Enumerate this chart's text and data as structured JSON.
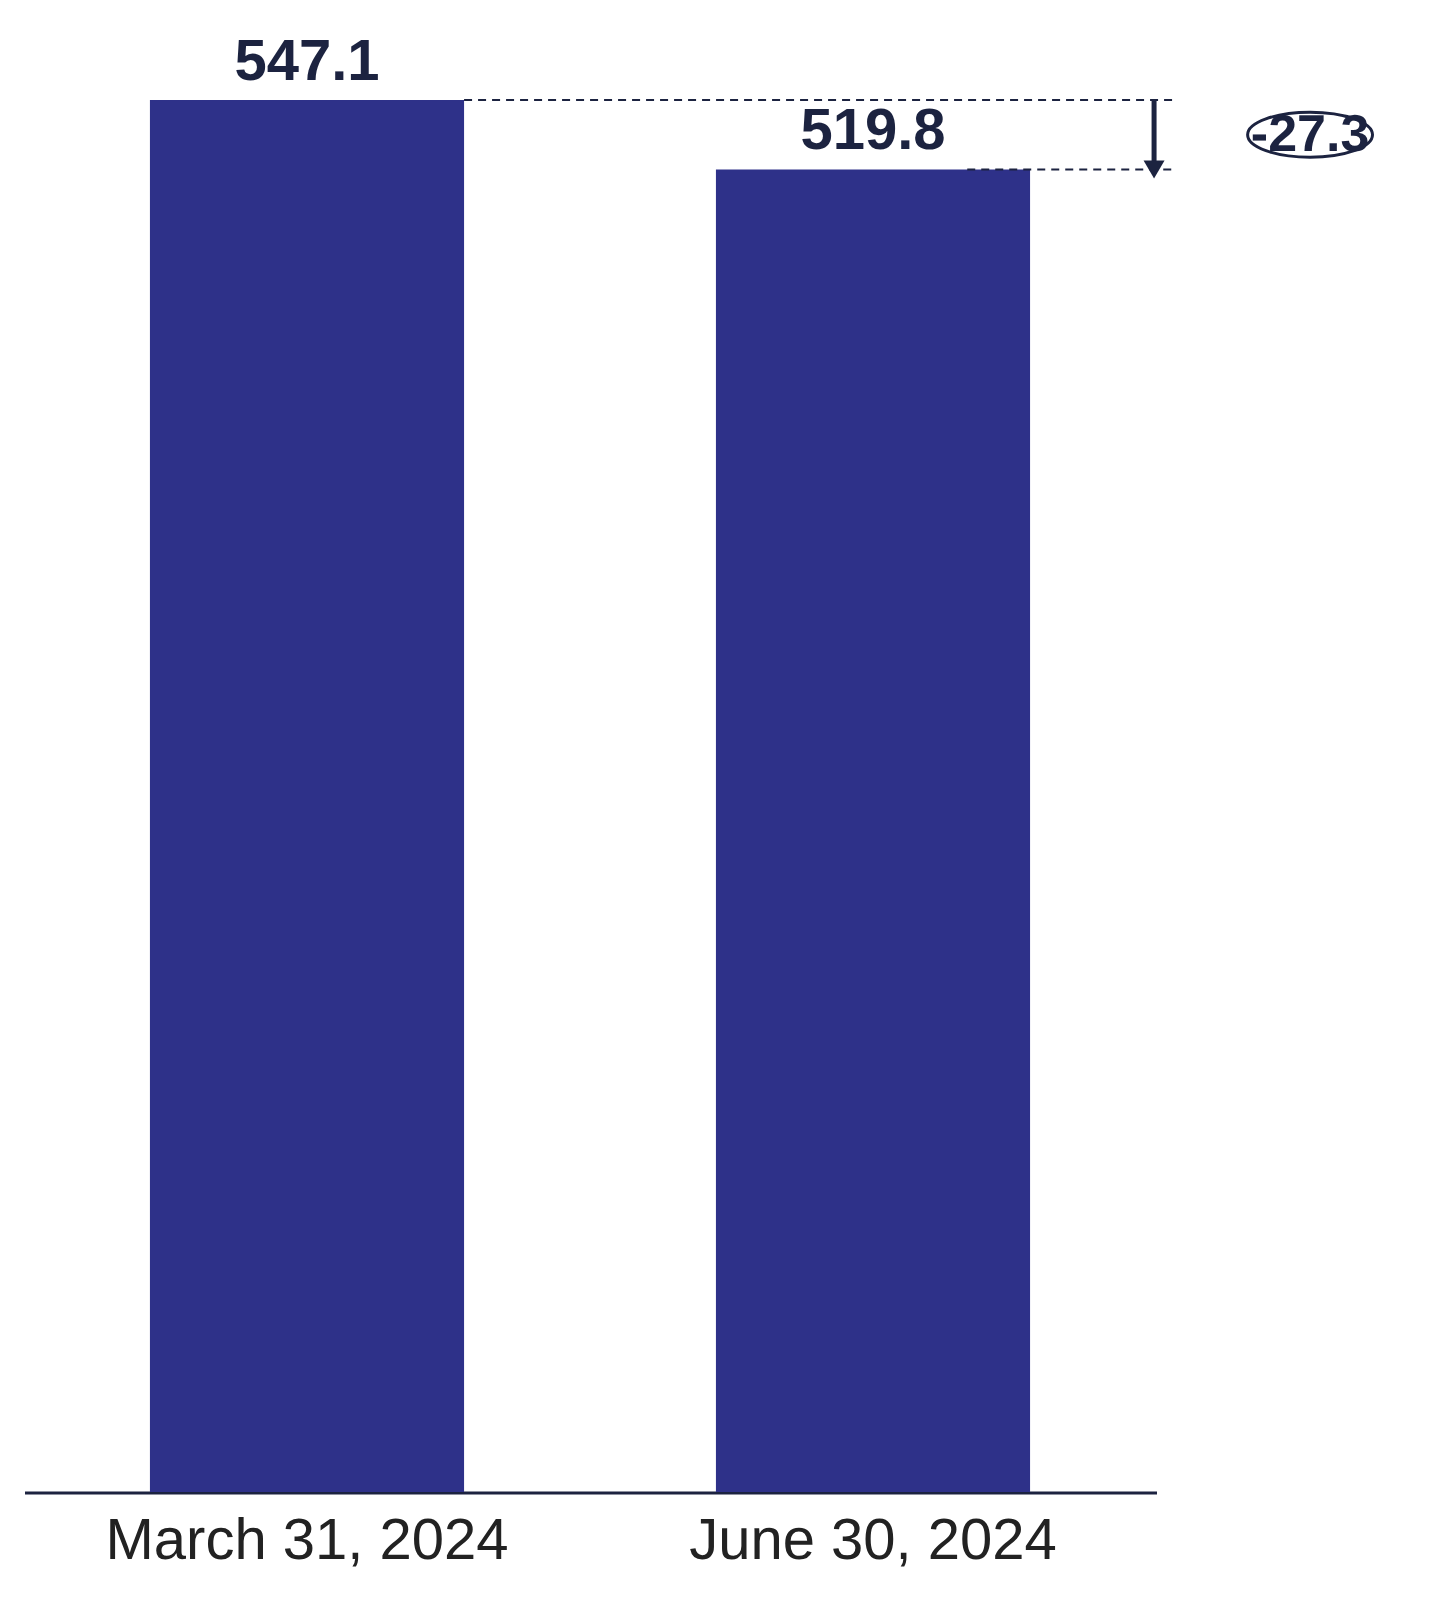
{
  "chart_data": {
    "type": "bar",
    "categories": [
      "March 31, 2024",
      "June 30, 2024"
    ],
    "values": [
      547.1,
      519.8
    ],
    "color": "#2e3189",
    "data_labels": true,
    "grid": false,
    "annotations": [
      "-27.3"
    ]
  }
}
